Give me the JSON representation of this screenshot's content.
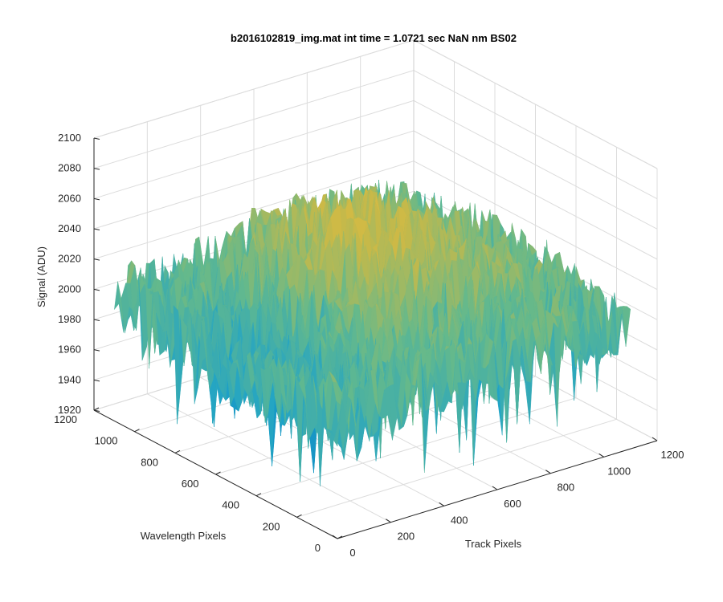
{
  "chart_data": {
    "type": "surface",
    "title": "b2016102819_img.mat int time = 1.0721 sec  NaN nm BS02",
    "xlabel": "Track Pixels",
    "ylabel": "Wavelength Pixels",
    "zlabel": "Signal (ADU)",
    "xlim": [
      0,
      1200
    ],
    "ylim": [
      0,
      1200
    ],
    "zlim": [
      1920,
      2100
    ],
    "x_ticks": [
      "0",
      "200",
      "400",
      "600",
      "800",
      "1000",
      "1200"
    ],
    "y_ticks": [
      "0",
      "200",
      "400",
      "600",
      "800",
      "1000",
      "1200"
    ],
    "z_ticks": [
      "1920",
      "1940",
      "1960",
      "1980",
      "2000",
      "2020",
      "2040",
      "2060",
      "2080",
      "2100"
    ],
    "grid": true,
    "surface": {
      "x_extent": [
        0,
        1100
      ],
      "y_extent": [
        0,
        1100
      ],
      "mean_signal": 2010,
      "noise_amplitude": 25,
      "center_peak_signal": 2050,
      "deep_minimum_signal": 1935
    },
    "colors": {
      "low": "#0072bd",
      "mid_low": "#1fa3c8",
      "mid": "#64b98c",
      "mid_high": "#c4b94a",
      "high": "#eabb3b",
      "grid": "#dcdcdc",
      "axis": "#262626"
    }
  }
}
